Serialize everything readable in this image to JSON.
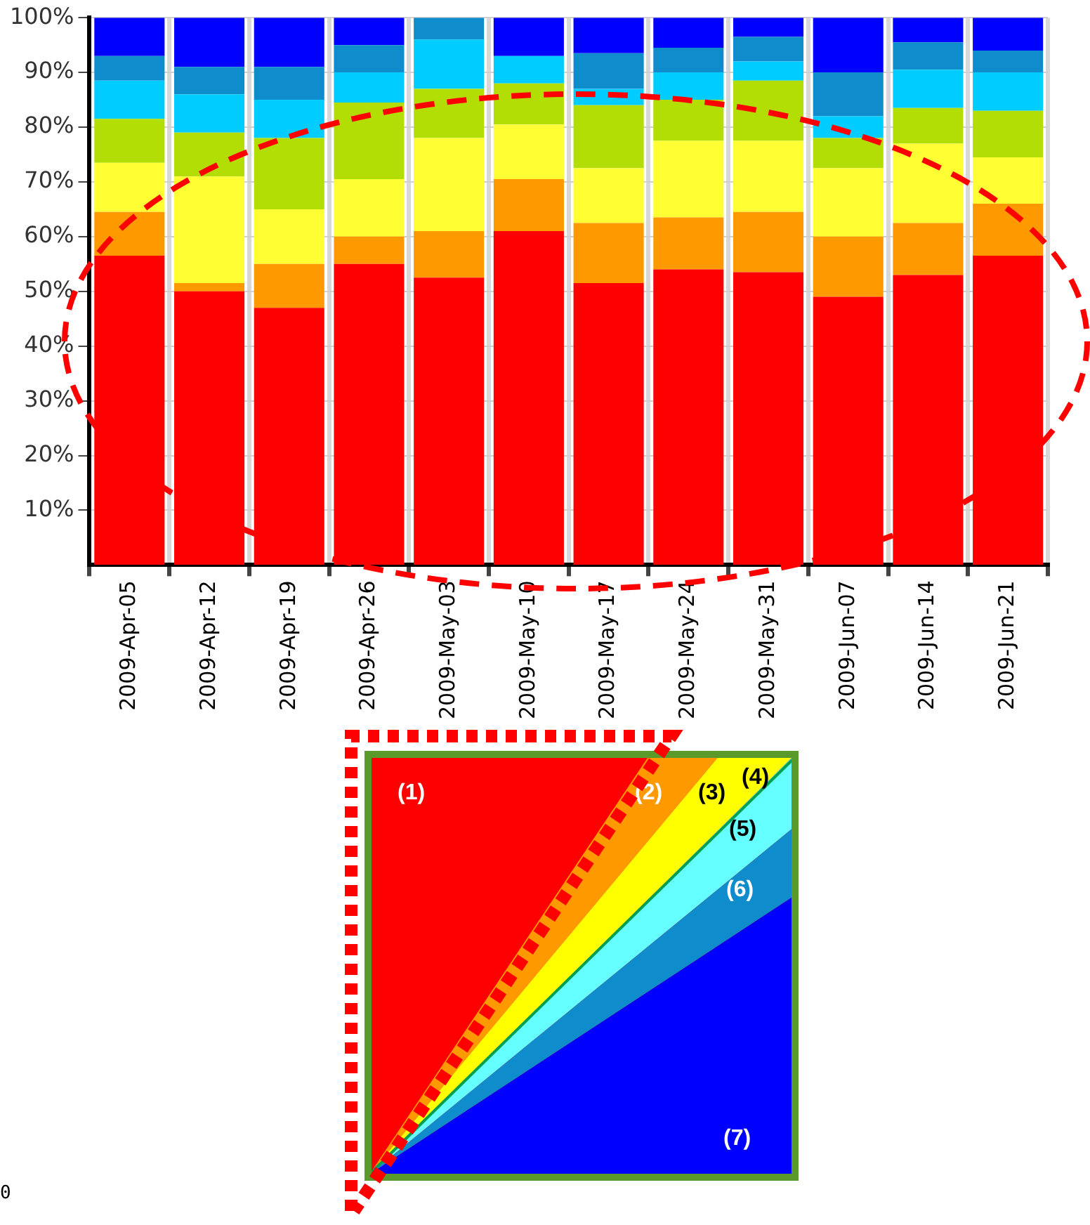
{
  "chart_data": {
    "type": "bar",
    "stacked": true,
    "categories": [
      "2009-Apr-05",
      "2009-Apr-12",
      "2009-Apr-19",
      "2009-Apr-26",
      "2009-May-03",
      "2009-May-10",
      "2009-May-17",
      "2009-May-24",
      "2009-May-31",
      "2009-Jun-07",
      "2009-Jun-14",
      "2009-Jun-21"
    ],
    "series": [
      {
        "color": "#ff0000",
        "values": [
          56.5,
          50,
          47,
          55,
          52.5,
          61,
          51.5,
          54,
          53.5,
          49,
          53,
          56.5
        ]
      },
      {
        "color": "#ff9900",
        "values": [
          8,
          1.5,
          8,
          5,
          8.5,
          9.5,
          11,
          9.5,
          11,
          11,
          9.5,
          9.5
        ]
      },
      {
        "color": "#ffff33",
        "values": [
          9,
          19.5,
          10,
          10.5,
          17,
          10,
          10,
          14,
          13,
          12.5,
          14.5,
          8.5
        ]
      },
      {
        "color": "#b2dd05",
        "values": [
          8,
          8,
          13,
          14,
          9,
          7.5,
          11.5,
          7.5,
          11,
          5.5,
          6.5,
          8.5
        ]
      },
      {
        "color": "#00ccff",
        "values": [
          7,
          7,
          7,
          5.5,
          9,
          5,
          3,
          5,
          3.5,
          4,
          7,
          7
        ]
      },
      {
        "color": "#0e8ccc",
        "values": [
          4.5,
          5,
          6,
          5,
          4,
          0,
          6.5,
          4.5,
          4.5,
          8,
          5,
          4
        ]
      },
      {
        "color": "#0000ff",
        "values": [
          7,
          9,
          9,
          5,
          0,
          7,
          6.5,
          5.5,
          3.5,
          10,
          4.5,
          6
        ]
      }
    ],
    "ylim": [
      0,
      100
    ],
    "yticks": [
      {
        "value": 10,
        "label": "10%"
      },
      {
        "value": 20,
        "label": "20%"
      },
      {
        "value": 30,
        "label": "30%"
      },
      {
        "value": 40,
        "label": "40%"
      },
      {
        "value": 50,
        "label": "50%"
      },
      {
        "value": 60,
        "label": "60%"
      },
      {
        "value": 70,
        "label": "70%"
      },
      {
        "value": 80,
        "label": "80%"
      },
      {
        "value": 90,
        "label": "90%"
      },
      {
        "value": 100,
        "label": "100%"
      }
    ],
    "grid": true,
    "legend": false,
    "annotations": [
      "(1)",
      "(2)",
      "(3)",
      "(4)",
      "(5)",
      "(6)",
      "(7)",
      "0"
    ]
  }
}
